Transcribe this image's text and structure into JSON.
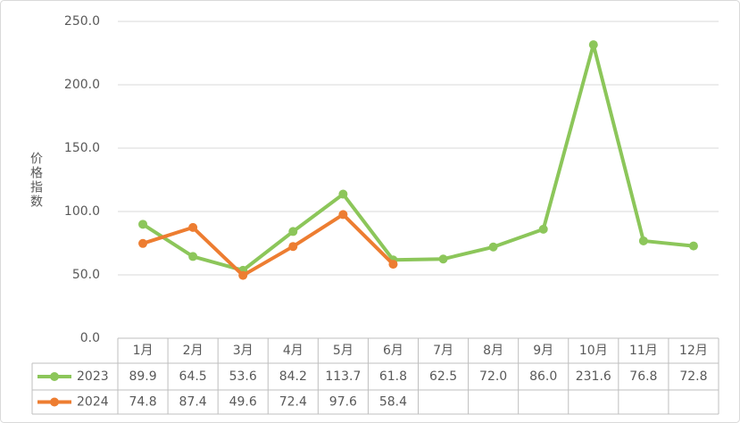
{
  "chart_data": {
    "type": "line",
    "y_label": "价格指数",
    "categories": [
      "1月",
      "2月",
      "3月",
      "4月",
      "5月",
      "6月",
      "7月",
      "8月",
      "9月",
      "10月",
      "11月",
      "12月"
    ],
    "series": [
      {
        "name": "2023",
        "color": "#8cc65a",
        "values": [
          89.9,
          64.5,
          53.6,
          84.2,
          113.7,
          61.8,
          62.5,
          72.0,
          86.0,
          231.6,
          76.8,
          72.8
        ],
        "value_labels": [
          "89.9",
          "64.5",
          "53.6",
          "84.2",
          "113.7",
          "61.8",
          "62.5",
          "72.0",
          "86.0",
          "231.6",
          "76.8",
          "72.8"
        ]
      },
      {
        "name": "2024",
        "color": "#ed7d31",
        "values": [
          74.8,
          87.4,
          49.6,
          72.4,
          97.6,
          58.4,
          null,
          null,
          null,
          null,
          null,
          null
        ],
        "value_labels": [
          "74.8",
          "87.4",
          "49.6",
          "72.4",
          "97.6",
          "58.4",
          null,
          null,
          null,
          null,
          null,
          null
        ]
      }
    ],
    "ylim": [
      0,
      250
    ],
    "yticks": [
      {
        "value": 0,
        "label": "0.0"
      },
      {
        "value": 50,
        "label": "50.0"
      },
      {
        "value": 100,
        "label": "100.0"
      },
      {
        "value": 150,
        "label": "150.0"
      },
      {
        "value": 200,
        "label": "200.0"
      },
      {
        "value": 250,
        "label": "250.0"
      }
    ],
    "grid": true
  }
}
